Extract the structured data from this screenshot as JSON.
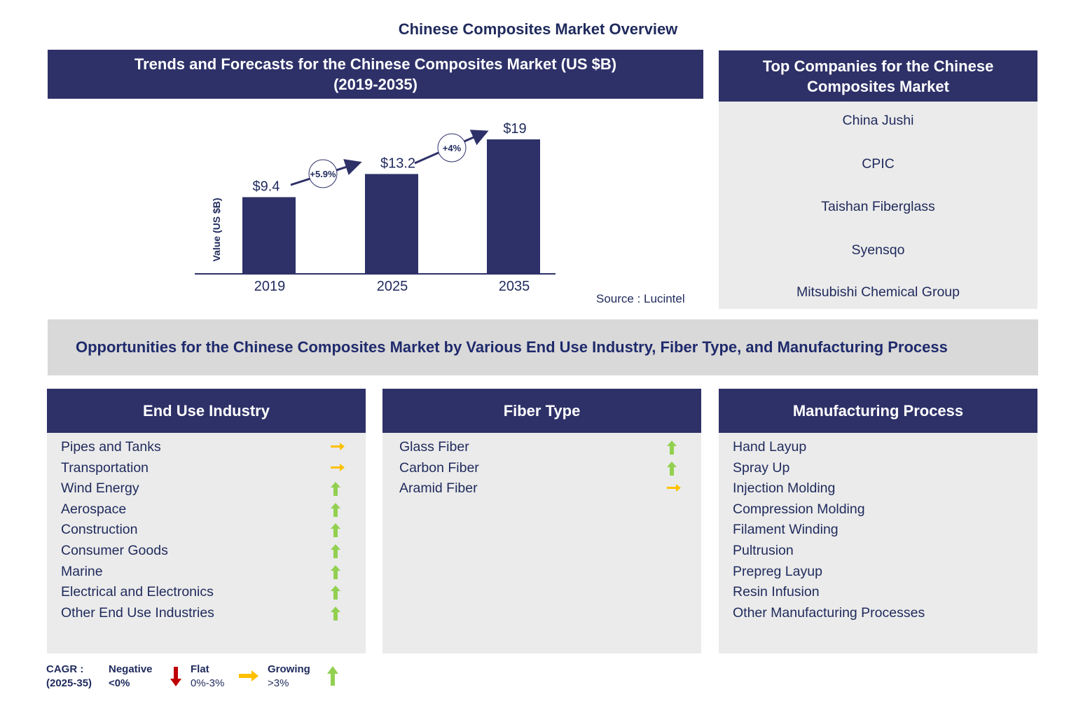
{
  "title": "Chinese Composites Market Overview",
  "trends": {
    "title_line1": "Trends and Forecasts for the Chinese Composites Market (US $B)",
    "title_line2": "(2019-2035)",
    "source": "Source : Lucintel"
  },
  "chart_data": {
    "type": "bar",
    "categories": [
      "2019",
      "2025",
      "2035"
    ],
    "values": [
      9.4,
      13.2,
      19
    ],
    "data_labels": [
      "$9.4",
      "$13.2",
      "$19"
    ],
    "ylabel": "Value (US $B)",
    "cagr_annotations": [
      "+5.9%",
      "+4%"
    ],
    "bar_color": "#2e3168"
  },
  "companies": {
    "title_line1": "Top Companies for the Chinese",
    "title_line2": "Composites Market",
    "items": [
      "China Jushi",
      "CPIC",
      "Taishan Fiberglass",
      "Syensqo",
      "Mitsubishi Chemical Group"
    ]
  },
  "opportunities": {
    "title": "Opportunities for the Chinese Composites Market by Various End Use Industry, Fiber Type, and Manufacturing Process"
  },
  "segments": [
    {
      "title": "End Use Industry",
      "items": [
        {
          "label": "Pipes and Tanks",
          "trend": "flat"
        },
        {
          "label": "Transportation",
          "trend": "flat"
        },
        {
          "label": "Wind Energy",
          "trend": "growing"
        },
        {
          "label": "Aerospace",
          "trend": "growing"
        },
        {
          "label": "Construction",
          "trend": "growing"
        },
        {
          "label": "Consumer  Goods",
          "trend": "growing"
        },
        {
          "label": "Marine",
          "trend": "growing"
        },
        {
          "label": "Electrical and Electronics",
          "trend": "growing"
        },
        {
          "label": "Other End Use Industries",
          "trend": "growing"
        }
      ]
    },
    {
      "title": "Fiber Type",
      "items": [
        {
          "label": "Glass Fiber",
          "trend": "growing"
        },
        {
          "label": "Carbon Fiber",
          "trend": "growing"
        },
        {
          "label": "Aramid  Fiber",
          "trend": "flat"
        }
      ]
    },
    {
      "title": "Manufacturing Process",
      "items": [
        {
          "label": "Hand Layup"
        },
        {
          "label": "Spray Up"
        },
        {
          "label": "Injection Molding"
        },
        {
          "label": "Compression Molding"
        },
        {
          "label": "Filament  Winding"
        },
        {
          "label": "Pultrusion"
        },
        {
          "label": "Prepreg Layup"
        },
        {
          "label": "Resin Infusion"
        },
        {
          "label": "Other Manufacturing  Processes"
        }
      ]
    }
  ],
  "legend": {
    "cagr_label": "CAGR  :",
    "cagr_period": "(2025-35)",
    "negative": "Negative",
    "negative_range": "<0%",
    "flat": "Flat",
    "flat_range": "0%-3%",
    "growing": "Growing",
    "growing_range": ">3%"
  },
  "colors": {
    "growing": "#92d050",
    "flat": "#ffc000",
    "negative": "#c00000",
    "header": "#2e3168"
  }
}
